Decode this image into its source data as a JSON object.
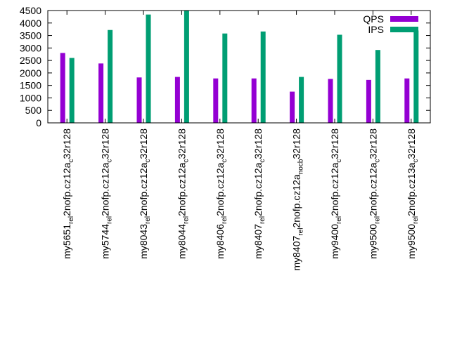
{
  "chart_data": {
    "type": "bar",
    "title": "",
    "xlabel": "",
    "ylabel": "",
    "ylim": [
      0,
      4500
    ],
    "yticks": [
      0,
      500,
      1000,
      1500,
      2000,
      2500,
      3000,
      3500,
      4000,
      4500
    ],
    "grid": false,
    "legend_position": "top-right",
    "categories": [
      {
        "base": "my5651",
        "parts": [
          [
            "",
            ""
          ],
          [
            "sub",
            "rel"
          ],
          [
            "",
            "2nofp.cz12a"
          ],
          [
            "sub",
            "c"
          ],
          [
            "",
            "32r128"
          ]
        ]
      },
      {
        "base": "my5744",
        "parts": [
          [
            "",
            ""
          ],
          [
            "sub",
            "rel"
          ],
          [
            "",
            "2nofp.cz12a"
          ],
          [
            "sub",
            "c"
          ],
          [
            "",
            "32r128"
          ]
        ]
      },
      {
        "base": "my8043",
        "parts": [
          [
            "",
            ""
          ],
          [
            "sub",
            "rel"
          ],
          [
            "",
            "2nofp.cz12a"
          ],
          [
            "sub",
            "c"
          ],
          [
            "",
            "32r128"
          ]
        ]
      },
      {
        "base": "my8044",
        "parts": [
          [
            "",
            ""
          ],
          [
            "sub",
            "rel"
          ],
          [
            "",
            "2nofp.cz12a"
          ],
          [
            "sub",
            "c"
          ],
          [
            "",
            "32r128"
          ]
        ]
      },
      {
        "base": "my8406",
        "parts": [
          [
            "",
            ""
          ],
          [
            "sub",
            "rel"
          ],
          [
            "",
            "2nofp.cz12a"
          ],
          [
            "sub",
            "c"
          ],
          [
            "",
            "32r128"
          ]
        ]
      },
      {
        "base": "my8407",
        "parts": [
          [
            "",
            ""
          ],
          [
            "sub",
            "rel"
          ],
          [
            "",
            "2nofp.cz12a"
          ],
          [
            "sub",
            "c"
          ],
          [
            "",
            "32r128"
          ]
        ]
      },
      {
        "base": "my8407",
        "parts": [
          [
            "",
            ""
          ],
          [
            "sub",
            "rel"
          ],
          [
            "",
            "2nofp.cz12a"
          ],
          [
            "sub",
            "nocb"
          ],
          [
            "",
            "32r128"
          ]
        ]
      },
      {
        "base": "my9400",
        "parts": [
          [
            "",
            ""
          ],
          [
            "sub",
            "rel"
          ],
          [
            "",
            "2nofp.cz12a"
          ],
          [
            "sub",
            "c"
          ],
          [
            "",
            "32r128"
          ]
        ]
      },
      {
        "base": "my9500",
        "parts": [
          [
            "",
            ""
          ],
          [
            "sub",
            "rel"
          ],
          [
            "",
            "2nofp.cz12a"
          ],
          [
            "sub",
            "c"
          ],
          [
            "",
            "32r128"
          ]
        ]
      },
      {
        "base": "my9500",
        "parts": [
          [
            "",
            ""
          ],
          [
            "sub",
            "rel"
          ],
          [
            "",
            "2nofp.cz13a"
          ],
          [
            "sub",
            "c"
          ],
          [
            "",
            "32r128"
          ]
        ]
      }
    ],
    "series": [
      {
        "name": "QPS",
        "color": "#9400d3",
        "values": [
          2800,
          2380,
          1820,
          1840,
          1780,
          1780,
          1250,
          1760,
          1720,
          1780
        ]
      },
      {
        "name": "IPS",
        "color": "#009e73",
        "values": [
          2600,
          3720,
          4340,
          4560,
          3580,
          3660,
          1840,
          3530,
          2920,
          3700
        ]
      }
    ]
  }
}
